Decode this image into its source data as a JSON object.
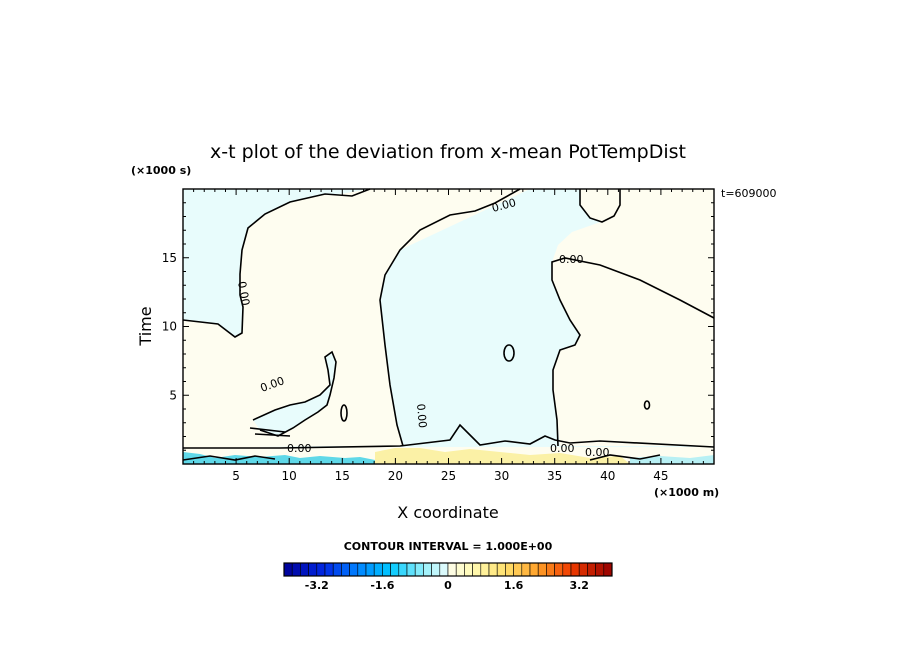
{
  "chart_data": {
    "type": "heatmap",
    "subtype": "filled contour (x-t plot)",
    "title": "x-t plot of the deviation from x-mean PotTempDist",
    "xlabel": "X coordinate",
    "ylabel": "Time",
    "x_unit": "(×1000 m)",
    "y_unit": "(×1000 s)",
    "time_stamp": "t=609000",
    "xlim": [
      0,
      50
    ],
    "ylim": [
      0,
      20
    ],
    "x_ticks": [
      5,
      10,
      15,
      20,
      25,
      30,
      35,
      40,
      45
    ],
    "y_ticks": [
      5,
      10,
      15
    ],
    "contour_interval_text": "CONTOUR INTERVAL = 1.000E+00",
    "contour_level_labels": [
      "0.00",
      "0.00",
      "0.00",
      "0.00",
      "0.00",
      "0.00",
      "0.00",
      "0.00"
    ],
    "colorbar": {
      "range": [
        -4,
        4
      ],
      "step": 0.2,
      "tick_labels": [
        "-3.2",
        "-1.6",
        "0",
        "1.6",
        "3.2"
      ],
      "tick_values": [
        -3.2,
        -1.6,
        0,
        1.6,
        3.2
      ],
      "colors": {
        "negative_min": "#0000a0",
        "negative_mid": "#00c8ff",
        "near_zero_negative": "#e8ffff",
        "near_zero_positive": "#fffff0",
        "positive_mid": "#ffe070",
        "positive_max": "#a00000"
      }
    },
    "regions": [
      {
        "name": "negative deviation (light cyan)",
        "value_range": [
          -1,
          0
        ],
        "color": "#e8fcfc"
      },
      {
        "name": "positive deviation (light cream)",
        "value_range": [
          0,
          1
        ],
        "color": "#fefdf0"
      },
      {
        "name": "strong negative near t=0",
        "value_range": [
          -3,
          -1
        ],
        "color": "#5fd8e8"
      },
      {
        "name": "positive near t=0",
        "value_range": [
          1,
          2
        ],
        "color": "#fbf1a6"
      }
    ]
  }
}
